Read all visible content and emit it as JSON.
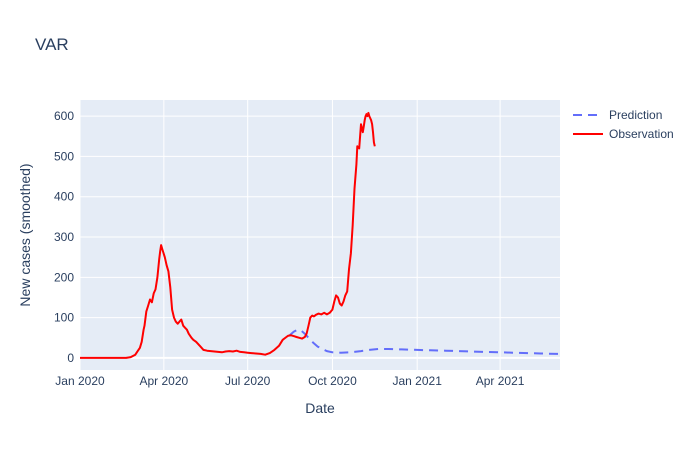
{
  "chart_data": {
    "type": "line",
    "title": "VAR",
    "xlabel": "Date",
    "ylabel": "New cases (smoothed)",
    "xlim": [
      "2020-01-01",
      "2021-06-05"
    ],
    "ylim": [
      -30,
      640
    ],
    "x_ticks": [
      {
        "date": "2020-01-01",
        "label": "Jan 2020"
      },
      {
        "date": "2020-04-01",
        "label": "Apr 2020"
      },
      {
        "date": "2020-07-01",
        "label": "Jul 2020"
      },
      {
        "date": "2020-10-01",
        "label": "Oct 2020"
      },
      {
        "date": "2021-01-01",
        "label": "Jan 2021"
      },
      {
        "date": "2021-04-01",
        "label": "Apr 2021"
      }
    ],
    "y_ticks": [
      0,
      100,
      200,
      300,
      400,
      500,
      600
    ],
    "grid": true,
    "legend_position": "top-right",
    "series": [
      {
        "name": "Prediction",
        "color": "#636efa",
        "dash": "dashed",
        "x": [
          "2020-08-15",
          "2020-08-20",
          "2020-08-24",
          "2020-08-28",
          "2020-09-01",
          "2020-09-05",
          "2020-09-10",
          "2020-09-15",
          "2020-09-20",
          "2020-09-25",
          "2020-10-01",
          "2020-10-10",
          "2020-10-20",
          "2020-11-01",
          "2020-11-10",
          "2020-11-20",
          "2020-12-01",
          "2020-12-15",
          "2021-01-01",
          "2021-01-15",
          "2021-02-01",
          "2021-02-15",
          "2021-03-01",
          "2021-03-15",
          "2021-04-01",
          "2021-04-15",
          "2021-05-01",
          "2021-05-15",
          "2021-06-01",
          "2021-06-05"
        ],
        "y": [
          55,
          65,
          70,
          68,
          60,
          50,
          38,
          28,
          22,
          17,
          14,
          13,
          14,
          17,
          20,
          22,
          22,
          21,
          20,
          19,
          18,
          17,
          16,
          15,
          14,
          13,
          12,
          11,
          10,
          10
        ]
      },
      {
        "name": "Observation",
        "color": "#ff0000",
        "dash": "solid",
        "x": [
          "2020-01-01",
          "2020-02-01",
          "2020-02-15",
          "2020-02-20",
          "2020-02-25",
          "2020-03-01",
          "2020-03-03",
          "2020-03-06",
          "2020-03-08",
          "2020-03-10",
          "2020-03-11",
          "2020-03-13",
          "2020-03-15",
          "2020-03-17",
          "2020-03-19",
          "2020-03-21",
          "2020-03-23",
          "2020-03-25",
          "2020-03-27",
          "2020-03-28",
          "2020-03-29",
          "2020-03-31",
          "2020-04-02",
          "2020-04-04",
          "2020-04-06",
          "2020-04-08",
          "2020-04-10",
          "2020-04-12",
          "2020-04-14",
          "2020-04-16",
          "2020-04-18",
          "2020-04-20",
          "2020-04-22",
          "2020-04-24",
          "2020-04-26",
          "2020-04-28",
          "2020-05-01",
          "2020-05-03",
          "2020-05-06",
          "2020-05-10",
          "2020-05-14",
          "2020-05-18",
          "2020-05-22",
          "2020-05-26",
          "2020-05-30",
          "2020-06-03",
          "2020-06-07",
          "2020-06-11",
          "2020-06-15",
          "2020-06-19",
          "2020-06-23",
          "2020-06-27",
          "2020-07-01",
          "2020-07-05",
          "2020-07-10",
          "2020-07-15",
          "2020-07-20",
          "2020-07-25",
          "2020-07-30",
          "2020-08-04",
          "2020-08-08",
          "2020-08-12",
          "2020-08-14",
          "2020-08-17",
          "2020-08-20",
          "2020-08-23",
          "2020-08-26",
          "2020-08-29",
          "2020-09-01",
          "2020-09-03",
          "2020-09-05",
          "2020-09-07",
          "2020-09-09",
          "2020-09-11",
          "2020-09-13",
          "2020-09-16",
          "2020-09-19",
          "2020-09-22",
          "2020-09-25",
          "2020-09-28",
          "2020-10-01",
          "2020-10-03",
          "2020-10-05",
          "2020-10-07",
          "2020-10-09",
          "2020-10-11",
          "2020-10-13",
          "2020-10-15",
          "2020-10-17",
          "2020-10-19",
          "2020-10-21",
          "2020-10-23",
          "2020-10-25",
          "2020-10-27",
          "2020-10-28",
          "2020-10-30",
          "2020-11-01",
          "2020-11-02",
          "2020-11-03",
          "2020-11-04",
          "2020-11-05",
          "2020-11-06",
          "2020-11-07",
          "2020-11-08",
          "2020-11-09",
          "2020-11-10",
          "2020-11-11",
          "2020-11-12",
          "2020-11-13",
          "2020-11-14",
          "2020-11-15",
          "2020-11-16"
        ],
        "y": [
          0,
          0,
          0,
          0,
          2,
          8,
          15,
          25,
          40,
          70,
          80,
          115,
          130,
          145,
          138,
          160,
          170,
          200,
          245,
          265,
          280,
          265,
          250,
          230,
          215,
          175,
          120,
          100,
          90,
          85,
          90,
          95,
          80,
          75,
          70,
          60,
          50,
          45,
          40,
          30,
          20,
          18,
          17,
          16,
          15,
          14,
          16,
          17,
          16,
          18,
          15,
          14,
          13,
          12,
          11,
          10,
          8,
          12,
          20,
          30,
          45,
          52,
          55,
          56,
          54,
          52,
          50,
          48,
          52,
          60,
          80,
          100,
          105,
          103,
          107,
          110,
          108,
          112,
          108,
          112,
          120,
          140,
          155,
          150,
          135,
          130,
          140,
          155,
          165,
          220,
          260,
          330,
          420,
          480,
          525,
          520,
          580,
          570,
          560,
          575,
          590,
          600,
          605,
          600,
          608,
          600,
          595,
          590,
          580,
          560,
          535,
          525
        ]
      }
    ]
  }
}
